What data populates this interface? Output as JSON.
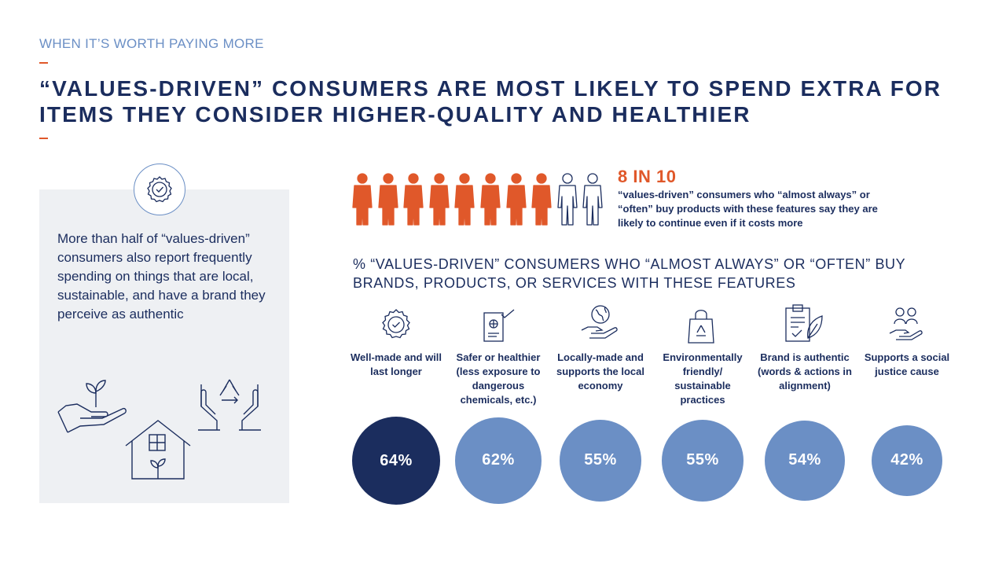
{
  "eyebrow": "WHEN IT’S WORTH PAYING MORE",
  "title": "“VALUES-DRIVEN” CONSUMERS ARE MOST LIKELY TO SPEND EXTRA FOR ITEMS THEY CONSIDER HIGHER-QUALITY AND HEALTHIER",
  "side_text": "More than half of “values-driven” consumers also report frequently spending on things that are local, sustainable, and have a brand they perceive as authentic",
  "stat": {
    "headline": "8 IN 10",
    "description": "“values-driven” consumers who “almost always” or “often” buy products with these features say they are likely to continue even if it costs more",
    "filled_people": 8,
    "total_people": 10
  },
  "section_heading": "% “VALUES-DRIVEN” CONSUMERS WHO “ALMOST ALWAYS” OR “OFTEN” BUY BRANDS, PRODUCTS, OR SERVICES WITH THESE FEATURES",
  "features": [
    {
      "label": "Well-made and will last longer",
      "value": 64,
      "value_label": "64%",
      "icon": "badge-check-icon"
    },
    {
      "label": "Safer or healthier (less exposure to dangerous chemicals, etc.)",
      "value": 62,
      "value_label": "62%",
      "icon": "certificate-icon"
    },
    {
      "label": "Locally-made and supports the local economy",
      "value": 55,
      "value_label": "55%",
      "icon": "globe-in-hand-icon"
    },
    {
      "label": "Environmentally friendly/ sustainable practices",
      "value": 55,
      "value_label": "55%",
      "icon": "recycle-bag-icon"
    },
    {
      "label": "Brand is authentic (words & actions in alignment)",
      "value": 54,
      "value_label": "54%",
      "icon": "clipboard-leaf-icon"
    },
    {
      "label": "Supports a social justice cause",
      "value": 42,
      "value_label": "42%",
      "icon": "people-in-hand-icon"
    }
  ],
  "colors": {
    "navy": "#1b2d5e",
    "blue": "#6b8fc5",
    "orange": "#e0582a",
    "panel": "#eef0f3"
  }
}
